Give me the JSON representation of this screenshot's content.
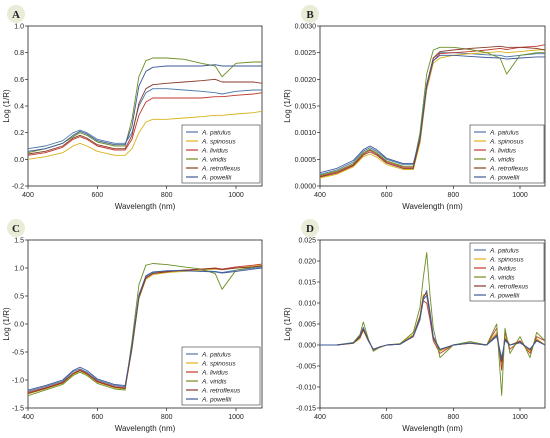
{
  "series_names": [
    "A. patulus",
    "A. spinosus",
    "A. lividus",
    "A. viridis",
    "A. retroflexus",
    "A. powellii"
  ],
  "series_colors": [
    "#4a78a8",
    "#d8b21a",
    "#c0392b",
    "#6b8e23",
    "#8b3a2a",
    "#3d5a99"
  ],
  "chart_data": [
    {
      "type": "line",
      "panel": "A",
      "xlabel": "Wavelength (nm)",
      "ylabel": "Log (1/R)",
      "xlim": [
        400,
        1075
      ],
      "ylim": [
        -0.2,
        1.0
      ],
      "xticks": [
        400,
        600,
        800,
        1000
      ],
      "yticks": [
        -0.2,
        0.0,
        0.2,
        0.4,
        0.6,
        0.8,
        1.0
      ],
      "ytick_labels": [
        "-0.2",
        "0.0",
        "0.2",
        "0.4",
        "0.6",
        "0.8",
        "1.0"
      ],
      "legend_position": "bottom-right",
      "x": [
        400,
        450,
        500,
        530,
        550,
        570,
        600,
        650,
        680,
        700,
        720,
        740,
        760,
        800,
        850,
        900,
        940,
        960,
        1000,
        1050,
        1075
      ],
      "series": [
        {
          "name": "A. patulus",
          "values": [
            0.08,
            0.1,
            0.14,
            0.2,
            0.22,
            0.2,
            0.15,
            0.12,
            0.12,
            0.2,
            0.4,
            0.5,
            0.53,
            0.53,
            0.52,
            0.51,
            0.5,
            0.49,
            0.51,
            0.52,
            0.52
          ]
        },
        {
          "name": "A. spinosus",
          "values": [
            0.0,
            0.02,
            0.05,
            0.1,
            0.12,
            0.1,
            0.06,
            0.03,
            0.03,
            0.08,
            0.2,
            0.28,
            0.3,
            0.3,
            0.31,
            0.32,
            0.33,
            0.33,
            0.34,
            0.35,
            0.36
          ]
        },
        {
          "name": "A. lividus",
          "values": [
            0.03,
            0.05,
            0.09,
            0.15,
            0.17,
            0.15,
            0.1,
            0.07,
            0.07,
            0.15,
            0.33,
            0.43,
            0.46,
            0.46,
            0.46,
            0.46,
            0.47,
            0.47,
            0.48,
            0.49,
            0.5
          ]
        },
        {
          "name": "A. viridis",
          "values": [
            0.05,
            0.08,
            0.12,
            0.17,
            0.2,
            0.18,
            0.13,
            0.1,
            0.1,
            0.3,
            0.62,
            0.74,
            0.76,
            0.76,
            0.75,
            0.72,
            0.7,
            0.62,
            0.72,
            0.73,
            0.73
          ]
        },
        {
          "name": "A. retroflexus",
          "values": [
            0.04,
            0.06,
            0.1,
            0.16,
            0.18,
            0.16,
            0.11,
            0.08,
            0.08,
            0.18,
            0.42,
            0.53,
            0.56,
            0.57,
            0.58,
            0.59,
            0.6,
            0.58,
            0.58,
            0.58,
            0.57
          ]
        },
        {
          "name": "A. powellii",
          "values": [
            0.06,
            0.08,
            0.12,
            0.18,
            0.21,
            0.19,
            0.14,
            0.11,
            0.11,
            0.25,
            0.55,
            0.66,
            0.69,
            0.7,
            0.7,
            0.7,
            0.71,
            0.7,
            0.7,
            0.7,
            0.7
          ]
        }
      ]
    },
    {
      "type": "line",
      "panel": "B",
      "xlabel": "Wavelength (nm)",
      "ylabel": "Log (1/R)",
      "xlim": [
        400,
        1075
      ],
      "ylim": [
        0.0,
        0.003
      ],
      "xticks": [
        400,
        600,
        800,
        1000
      ],
      "yticks": [
        0.0,
        0.0005,
        0.001,
        0.0015,
        0.002,
        0.0025,
        0.003
      ],
      "ytick_labels": [
        "0.0000",
        "0.0005",
        "0.0010",
        "0.0015",
        "0.0020",
        "0.0025",
        "0.0030"
      ],
      "legend_position": "bottom-right",
      "x": [
        400,
        450,
        500,
        530,
        550,
        570,
        600,
        650,
        680,
        700,
        720,
        740,
        760,
        800,
        850,
        900,
        940,
        960,
        1000,
        1050,
        1075
      ],
      "series": [
        {
          "name": "A. patulus",
          "values": [
            0.00022,
            0.0003,
            0.00045,
            0.00065,
            0.00072,
            0.00065,
            0.0005,
            0.0004,
            0.0004,
            0.0009,
            0.0019,
            0.0024,
            0.0025,
            0.0025,
            0.00248,
            0.00246,
            0.00245,
            0.00242,
            0.00245,
            0.00248,
            0.00248
          ]
        },
        {
          "name": "A. spinosus",
          "values": [
            0.00015,
            0.00022,
            0.00036,
            0.00055,
            0.0006,
            0.00054,
            0.0004,
            0.00031,
            0.00031,
            0.0008,
            0.0018,
            0.0023,
            0.0024,
            0.00245,
            0.00248,
            0.0025,
            0.00252,
            0.0025,
            0.00252,
            0.00255,
            0.00256
          ]
        },
        {
          "name": "A. lividus",
          "values": [
            0.00018,
            0.00026,
            0.0004,
            0.0006,
            0.00067,
            0.0006,
            0.00045,
            0.00035,
            0.00035,
            0.00085,
            0.00185,
            0.00235,
            0.00248,
            0.0025,
            0.00252,
            0.00255,
            0.00258,
            0.00256,
            0.0026,
            0.00262,
            0.00265
          ]
        },
        {
          "name": "A. viridis",
          "values": [
            0.0002,
            0.00028,
            0.00042,
            0.00062,
            0.00069,
            0.00062,
            0.00047,
            0.00037,
            0.00037,
            0.001,
            0.0021,
            0.00255,
            0.0026,
            0.0026,
            0.00256,
            0.0025,
            0.0024,
            0.0021,
            0.00245,
            0.0025,
            0.0025
          ]
        },
        {
          "name": "A. retroflexus",
          "values": [
            0.00017,
            0.00024,
            0.00038,
            0.00058,
            0.00064,
            0.00058,
            0.00043,
            0.00033,
            0.00033,
            0.00088,
            0.0019,
            0.0024,
            0.00252,
            0.00255,
            0.00258,
            0.0026,
            0.00262,
            0.0026,
            0.0026,
            0.00258,
            0.00255
          ]
        },
        {
          "name": "A. powellii",
          "values": [
            0.00025,
            0.00033,
            0.00048,
            0.00068,
            0.00075,
            0.00068,
            0.00052,
            0.00042,
            0.00042,
            0.0009,
            0.0019,
            0.00235,
            0.00245,
            0.00245,
            0.00243,
            0.00241,
            0.0024,
            0.00238,
            0.0024,
            0.00242,
            0.00242
          ]
        }
      ]
    },
    {
      "type": "line",
      "panel": "C",
      "xlabel": "Wavelength (nm)",
      "ylabel": "Log (1/R)",
      "xlim": [
        400,
        1075
      ],
      "ylim": [
        -1.5,
        1.5
      ],
      "xticks": [
        400,
        600,
        800,
        1000
      ],
      "yticks": [
        -1.5,
        -1.0,
        -0.5,
        0.0,
        0.5,
        1.0,
        1.5
      ],
      "ytick_labels": [
        "-1.5",
        "-1.0",
        "-0.5",
        "0.0",
        "0.5",
        "1.0",
        "1.5"
      ],
      "legend_position": "bottom-right",
      "x": [
        400,
        450,
        500,
        530,
        550,
        570,
        600,
        650,
        680,
        700,
        720,
        740,
        760,
        800,
        850,
        900,
        940,
        960,
        1000,
        1050,
        1075
      ],
      "series": [
        {
          "name": "A. patulus",
          "values": [
            -1.2,
            -1.12,
            -1.02,
            -0.85,
            -0.8,
            -0.86,
            -1.0,
            -1.1,
            -1.12,
            -0.4,
            0.5,
            0.85,
            0.92,
            0.95,
            0.96,
            0.95,
            0.94,
            0.92,
            0.96,
            1.0,
            1.02
          ]
        },
        {
          "name": "A. spinosus",
          "values": [
            -1.25,
            -1.16,
            -1.06,
            -0.9,
            -0.84,
            -0.9,
            -1.04,
            -1.14,
            -1.16,
            -0.45,
            0.45,
            0.8,
            0.88,
            0.92,
            0.94,
            0.96,
            0.98,
            0.97,
            1.0,
            1.03,
            1.05
          ]
        },
        {
          "name": "A. lividus",
          "values": [
            -1.22,
            -1.14,
            -1.04,
            -0.88,
            -0.82,
            -0.88,
            -1.02,
            -1.12,
            -1.14,
            -0.42,
            0.48,
            0.83,
            0.9,
            0.94,
            0.96,
            0.98,
            1.0,
            0.98,
            1.02,
            1.05,
            1.07
          ]
        },
        {
          "name": "A. viridis",
          "values": [
            -1.28,
            -1.18,
            -1.08,
            -0.92,
            -0.86,
            -0.92,
            -1.06,
            -1.16,
            -1.18,
            -0.3,
            0.7,
            1.05,
            1.08,
            1.06,
            1.02,
            0.98,
            0.9,
            0.62,
            0.96,
            1.02,
            1.03
          ]
        },
        {
          "name": "A. retroflexus",
          "values": [
            -1.24,
            -1.15,
            -1.05,
            -0.89,
            -0.83,
            -0.89,
            -1.03,
            -1.13,
            -1.15,
            -0.43,
            0.47,
            0.82,
            0.9,
            0.93,
            0.96,
            0.98,
            0.99,
            0.97,
            1.0,
            1.02,
            1.04
          ]
        },
        {
          "name": "A. powellii",
          "values": [
            -1.18,
            -1.1,
            -1.0,
            -0.83,
            -0.77,
            -0.83,
            -0.98,
            -1.08,
            -1.1,
            -0.38,
            0.52,
            0.86,
            0.93,
            0.95,
            0.95,
            0.94,
            0.93,
            0.91,
            0.94,
            0.98,
            1.0
          ]
        }
      ]
    },
    {
      "type": "line",
      "panel": "D",
      "xlabel": "Wavelength (nm)",
      "ylabel": "Log (1/R)",
      "xlim": [
        400,
        1075
      ],
      "ylim": [
        -0.015,
        0.025
      ],
      "xticks": [
        400,
        600,
        800,
        1000
      ],
      "yticks": [
        -0.015,
        -0.01,
        -0.005,
        0.0,
        0.005,
        0.01,
        0.015,
        0.02,
        0.025
      ],
      "ytick_labels": [
        "-0.015",
        "-0.010",
        "-0.005",
        "0.000",
        "0.005",
        "0.010",
        "0.015",
        "0.020",
        "0.025"
      ],
      "legend_position": "top-right",
      "x": [
        400,
        450,
        500,
        520,
        530,
        545,
        560,
        580,
        600,
        640,
        680,
        700,
        710,
        720,
        730,
        740,
        760,
        800,
        850,
        900,
        930,
        945,
        955,
        970,
        1000,
        1030,
        1050,
        1075
      ],
      "series": [
        {
          "name": "A. patulus",
          "values": [
            0.0,
            0.0,
            0.0005,
            0.002,
            0.004,
            0.001,
            -0.001,
            -0.0005,
            0.0,
            0.0002,
            0.002,
            0.006,
            0.011,
            0.013,
            0.008,
            0.002,
            -0.001,
            0.0,
            0.0005,
            0.0,
            0.002,
            -0.003,
            0.001,
            0.0,
            0.0005,
            -0.001,
            0.001,
            0.0
          ]
        },
        {
          "name": "A. spinosus",
          "values": [
            0.0,
            0.0,
            0.0004,
            0.0015,
            0.0035,
            0.001,
            -0.001,
            -0.0006,
            0.0,
            0.0003,
            0.0025,
            0.007,
            0.012,
            0.012,
            0.007,
            0.0015,
            -0.0015,
            0.0,
            0.0004,
            0.0,
            0.003,
            -0.005,
            0.002,
            0.0,
            0.001,
            -0.0015,
            0.0015,
            0.0
          ]
        },
        {
          "name": "A. lividus",
          "values": [
            0.0,
            0.0,
            0.0005,
            0.002,
            0.0038,
            0.0012,
            -0.0012,
            -0.0005,
            0.0,
            0.0002,
            0.002,
            0.0065,
            0.0105,
            0.01,
            0.006,
            0.001,
            -0.002,
            0.0,
            0.0005,
            0.0,
            0.004,
            -0.006,
            0.003,
            -0.001,
            0.001,
            -0.002,
            0.002,
            0.001
          ]
        },
        {
          "name": "A. viridis",
          "values": [
            0.0,
            0.0,
            0.0006,
            0.0025,
            0.0055,
            0.0015,
            -0.0015,
            -0.0005,
            0.0,
            0.0003,
            0.003,
            0.009,
            0.016,
            0.022,
            0.012,
            0.004,
            -0.003,
            0.0,
            0.0008,
            0.0,
            0.005,
            -0.012,
            0.004,
            -0.002,
            0.002,
            -0.003,
            0.003,
            0.001
          ]
        },
        {
          "name": "A. retroflexus",
          "values": [
            0.0,
            0.0,
            0.0004,
            0.0018,
            0.0036,
            0.001,
            -0.001,
            -0.0005,
            0.0,
            0.0002,
            0.0022,
            0.0068,
            0.0115,
            0.0125,
            0.0075,
            0.0018,
            -0.0012,
            0.0,
            0.0004,
            0.0,
            0.0025,
            -0.004,
            0.0015,
            0.0,
            0.0008,
            -0.0012,
            0.0012,
            0.0
          ]
        },
        {
          "name": "A. powellii",
          "values": [
            0.0,
            0.0,
            0.0005,
            0.0022,
            0.0042,
            0.0012,
            -0.0011,
            -0.0004,
            0.0,
            0.0002,
            0.0021,
            0.0062,
            0.0108,
            0.0118,
            0.0072,
            0.0016,
            -0.0011,
            0.0,
            0.0005,
            0.0,
            0.0022,
            -0.0035,
            0.0012,
            0.0,
            0.0006,
            -0.001,
            0.001,
            0.0
          ]
        }
      ]
    }
  ]
}
